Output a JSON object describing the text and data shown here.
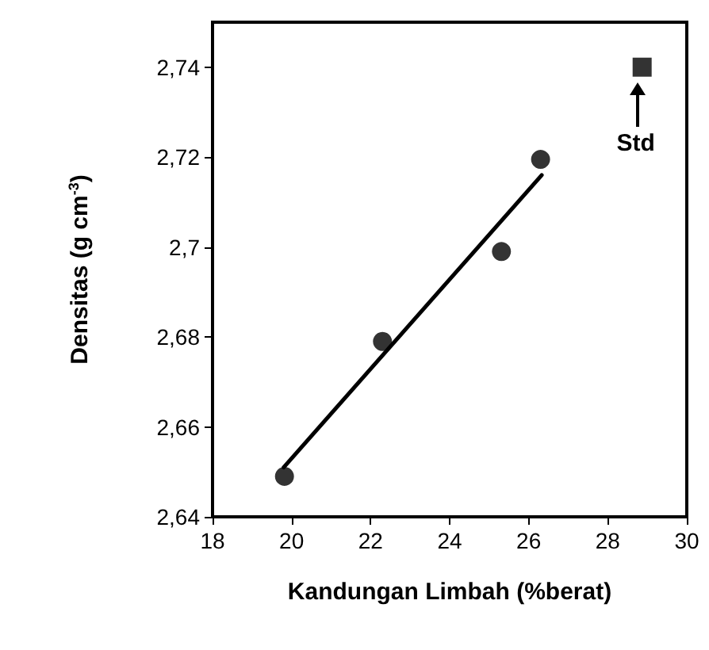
{
  "chart_data": {
    "type": "scatter",
    "xlabel": "Kandungan Limbah (%berat)",
    "ylabel": "Densitas (g cm$^{-3}$)",
    "xlim": [
      18,
      30
    ],
    "xticks": [
      18,
      20,
      22,
      24,
      26,
      28,
      30
    ],
    "ylim": [
      2.64,
      2.75
    ],
    "yticks": [
      {
        "value": 2.64,
        "label": "2,64"
      },
      {
        "value": 2.66,
        "label": "2,66"
      },
      {
        "value": 2.68,
        "label": "2,68"
      },
      {
        "value": 2.7,
        "label": "2,7"
      },
      {
        "value": 2.72,
        "label": "2,72"
      },
      {
        "value": 2.74,
        "label": "2,74"
      }
    ],
    "grid": false,
    "series": [
      {
        "color": "#000000",
        "marker": "circle",
        "x": [
          19.82,
          22.3,
          25.31,
          26.3
        ],
        "values": [
          2.649,
          2.679,
          2.699,
          2.7195
        ]
      },
      {
        "type": "line",
        "color": "#000000",
        "marker": "none",
        "line_style": "solid",
        "x": [
          19.8,
          26.33
        ],
        "values": [
          2.651,
          2.716
        ]
      },
      {
        "color": "#000000",
        "marker": "square",
        "x": [
          28.87
        ],
        "values": [
          2.74
        ]
      }
    ],
    "annotations": [
      {
        "text": "Std",
        "x": 28.87,
        "y": 2.74
      }
    ]
  }
}
